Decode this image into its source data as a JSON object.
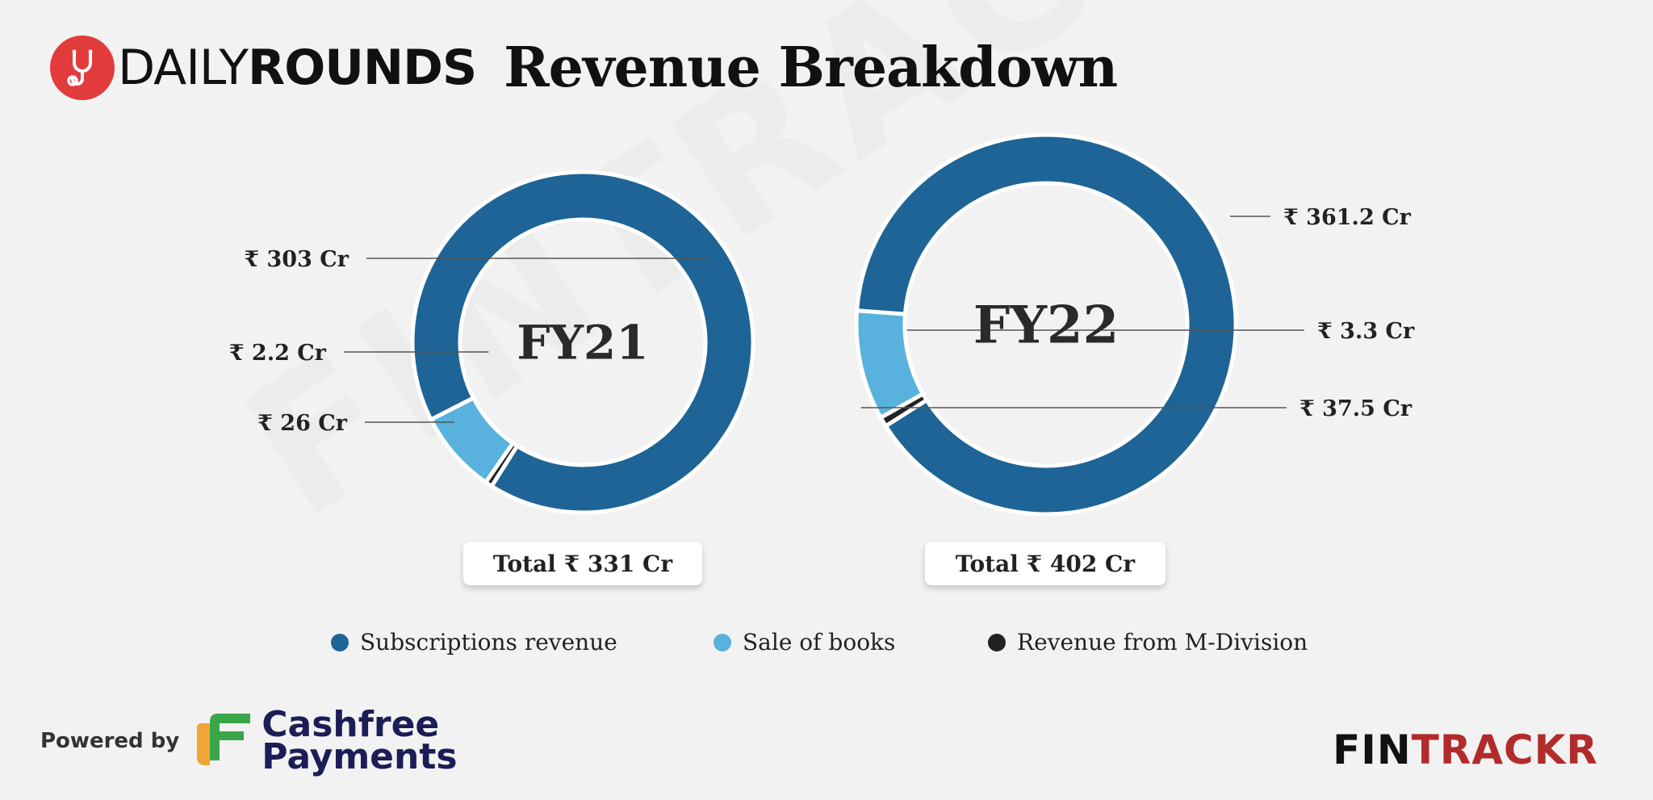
{
  "brand": {
    "logo_light": "DAILY",
    "logo_bold": "ROUNDS"
  },
  "title": "Revenue Breakdown",
  "watermark": "FINTRACKR",
  "colors": {
    "subscriptions": "#1e6496",
    "books": "#58b2dd",
    "mdivision": "#222222",
    "logo_red": "#e23b3b",
    "fintrackr_red": "#b22b2b",
    "cashfree_navy": "#1b1d57"
  },
  "chart_data": [
    {
      "type": "pie",
      "center_label": "FY21",
      "total": "Total ₹ 331 Cr",
      "slices": [
        {
          "series": "Subscriptions revenue",
          "value": 303,
          "label": "₹ 303 Cr"
        },
        {
          "series": "Revenue from M-Division",
          "value": 2.2,
          "label": "₹ 2.2 Cr"
        },
        {
          "series": "Sale of books",
          "value": 26,
          "label": "₹ 26 Cr"
        }
      ]
    },
    {
      "type": "pie",
      "center_label": "FY22",
      "total": "Total ₹ 402 Cr",
      "slices": [
        {
          "series": "Subscriptions revenue",
          "value": 361.2,
          "label": "₹ 361.2 Cr"
        },
        {
          "series": "Revenue from M-Division",
          "value": 3.3,
          "label": "₹ 3.3 Cr"
        },
        {
          "series": "Sale of books",
          "value": 37.5,
          "label": "₹ 37.5 Cr"
        }
      ]
    }
  ],
  "legend": [
    {
      "label": "Subscriptions revenue",
      "color": "#1e6496"
    },
    {
      "label": "Sale of books",
      "color": "#58b2dd"
    },
    {
      "label": "Revenue from M-Division",
      "color": "#222222"
    }
  ],
  "footer": {
    "powered_by": "Powered by",
    "cashfree_line1": "Cashfree",
    "cashfree_line2": "Payments",
    "fintrackr_fin": "FIN",
    "fintrackr_trackr": "TRACKR"
  }
}
